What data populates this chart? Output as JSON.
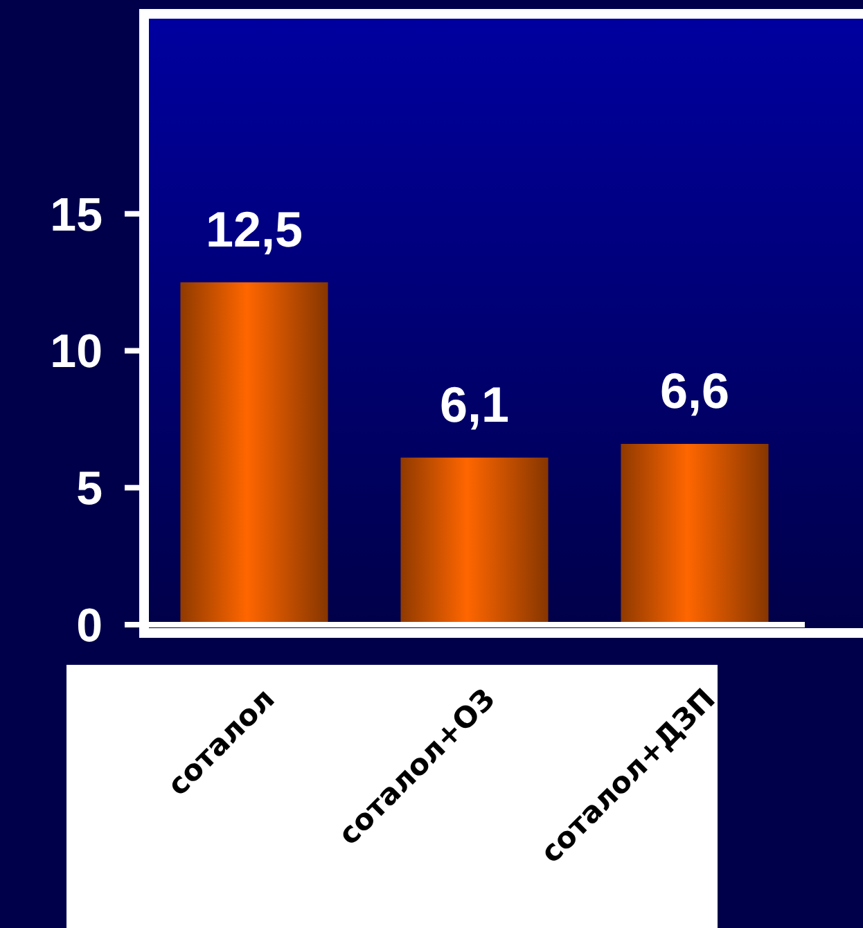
{
  "chart_data": {
    "type": "bar",
    "categories": [
      "соталол",
      "соталол+ОЗ",
      "соталол+ДЗП"
    ],
    "values": [
      12.5,
      6.1,
      6.6
    ],
    "value_labels": [
      "12,5",
      "6,1",
      "6,6"
    ],
    "color": "#ff6600",
    "ylim": [
      0,
      22.3
    ],
    "yticks": [
      0,
      5,
      10,
      15
    ],
    "grid": false
  }
}
